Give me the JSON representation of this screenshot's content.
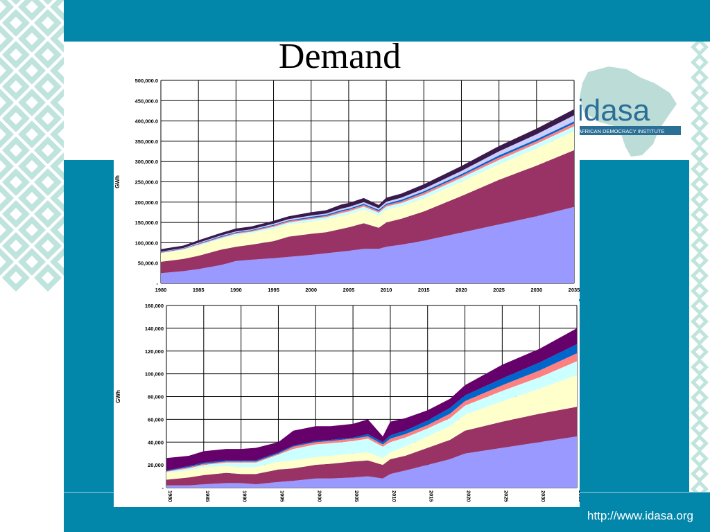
{
  "slide": {
    "title": "Demand",
    "url": "http://www.idasa.org",
    "logo_text": "idasa",
    "logo_tagline": "AFRICAN DEMOCRACY INSTITUTE"
  },
  "colors": {
    "teal_band": "#0286aa",
    "pattern_fill": "#bfe3dd",
    "logo_text": "#2b6f97",
    "africa_shape": "#bcdcd8"
  },
  "chart_data": [
    {
      "type": "area",
      "stacked": true,
      "ylabel": "GWh",
      "xlabel": "",
      "ylim": [
        0,
        500000
      ],
      "yticks": [
        "-",
        "50,000.0",
        "100,000.0",
        "150,000.0",
        "200,000.0",
        "250,000.0",
        "300,000.0",
        "350,000.0",
        "400,000.0",
        "450,000.0",
        "500,000.0"
      ],
      "xlim": [
        1980,
        2035
      ],
      "xticks": [
        "1980",
        "1985",
        "1990",
        "1995",
        "2000",
        "2005",
        "2010",
        "2015",
        "2020",
        "2025",
        "2030",
        "2035"
      ],
      "grid": true,
      "x": [
        1980,
        1983,
        1985,
        1988,
        1990,
        1992,
        1995,
        1997,
        2000,
        2002,
        2004,
        2005,
        2007,
        2009,
        2010,
        2012,
        2015,
        2020,
        2025,
        2030,
        2035
      ],
      "series": [
        {
          "color": "#9999ff",
          "values": [
            25000,
            30000,
            35000,
            45000,
            55000,
            58000,
            62000,
            65000,
            70000,
            74000,
            78000,
            80000,
            85000,
            85000,
            90000,
            95000,
            105000,
            125000,
            145000,
            165000,
            188000
          ]
        },
        {
          "color": "#993366",
          "values": [
            28000,
            30000,
            33000,
            38000,
            35000,
            37000,
            42000,
            50000,
            52000,
            52000,
            56000,
            58000,
            63000,
            52000,
            60000,
            64000,
            72000,
            90000,
            110000,
            125000,
            140000
          ]
        },
        {
          "color": "#ffffcc",
          "values": [
            20000,
            22000,
            24000,
            26000,
            28000,
            28000,
            30000,
            30000,
            30000,
            31000,
            32000,
            32000,
            33000,
            30000,
            31000,
            31000,
            32000,
            35000,
            38000,
            42000,
            46000
          ]
        },
        {
          "color": "#ccffff",
          "values": [
            2000,
            2000,
            3000,
            3000,
            4000,
            4000,
            5000,
            5000,
            6000,
            6000,
            7000,
            7000,
            8000,
            7000,
            8000,
            8000,
            9000,
            10000,
            11000,
            12000,
            13000
          ]
        },
        {
          "color": "#ff8080",
          "values": [
            1000,
            1000,
            2000,
            2000,
            2000,
            2000,
            3000,
            3000,
            3000,
            3000,
            4000,
            4000,
            4000,
            4000,
            4000,
            4000,
            5000,
            5000,
            6000,
            6000,
            7000
          ]
        },
        {
          "color": "#0066cc",
          "values": [
            1000,
            1000,
            1000,
            2000,
            2000,
            2000,
            2000,
            2000,
            3000,
            3000,
            3000,
            3000,
            3000,
            3000,
            3000,
            4000,
            4000,
            4000,
            5000,
            5000,
            5000
          ]
        },
        {
          "color": "#ccccff",
          "values": [
            1000,
            1000,
            2000,
            2000,
            2000,
            2000,
            3000,
            3000,
            3000,
            3000,
            4000,
            4000,
            4000,
            4000,
            5000,
            5000,
            6000,
            8000,
            10000,
            12000,
            15000
          ]
        },
        {
          "color": "#3a1a4a",
          "values": [
            6000,
            6000,
            6000,
            6000,
            7000,
            7000,
            7000,
            7000,
            8000,
            8000,
            10000,
            10000,
            10000,
            8000,
            10000,
            10000,
            11000,
            12000,
            13000,
            14000,
            15000
          ]
        }
      ]
    },
    {
      "type": "area",
      "stacked": true,
      "ylabel": "GWh",
      "xlabel": "",
      "ylim": [
        0,
        160000
      ],
      "yticks": [
        "-",
        "20,000",
        "40,000",
        "60,000",
        "80,000",
        "100,000",
        "120,000",
        "140,000",
        "160,000"
      ],
      "xlim": [
        1980,
        2035
      ],
      "xticks": [
        "1980",
        "1985",
        "1990",
        "1995",
        "2000",
        "2005",
        "2010",
        "2015",
        "2020",
        "2025",
        "2030",
        "2035"
      ],
      "grid": true,
      "x": [
        1980,
        1983,
        1985,
        1988,
        1990,
        1992,
        1995,
        1997,
        2000,
        2002,
        2005,
        2007,
        2009,
        2010,
        2012,
        2015,
        2018,
        2020,
        2025,
        2030,
        2035
      ],
      "series": [
        {
          "color": "#9999ff",
          "values": [
            2000,
            2000,
            3000,
            4000,
            4000,
            3000,
            5000,
            6000,
            8000,
            8000,
            9000,
            10000,
            8000,
            12000,
            15000,
            20000,
            25000,
            30000,
            35000,
            40000,
            45000
          ]
        },
        {
          "color": "#993366",
          "values": [
            5000,
            7000,
            8000,
            9000,
            8000,
            9000,
            11000,
            11000,
            12000,
            13000,
            14000,
            14000,
            12000,
            13000,
            13000,
            15000,
            17000,
            20000,
            23000,
            25000,
            26000
          ]
        },
        {
          "color": "#ffffcc",
          "values": [
            6000,
            6000,
            7000,
            6000,
            6000,
            6000,
            7000,
            7000,
            7000,
            7000,
            7000,
            7000,
            6000,
            6000,
            8000,
            10000,
            12000,
            14000,
            18000,
            22000,
            28000
          ]
        },
        {
          "color": "#ccffff",
          "values": [
            1000,
            2000,
            2000,
            3000,
            4000,
            4000,
            6000,
            10000,
            11000,
            11000,
            11000,
            12000,
            10000,
            9000,
            8000,
            7000,
            7000,
            8000,
            9000,
            10000,
            12000
          ]
        },
        {
          "color": "#ff8080",
          "values": [
            500,
            1000,
            1000,
            1000,
            1000,
            1000,
            1000,
            2000,
            2000,
            2000,
            2000,
            2000,
            2000,
            3000,
            3000,
            3000,
            4000,
            4000,
            5000,
            6000,
            7000
          ]
        },
        {
          "color": "#0066cc",
          "values": [
            500,
            1000,
            1000,
            1000,
            1000,
            1000,
            1000,
            1000,
            1000,
            1000,
            1000,
            2000,
            2000,
            3000,
            3000,
            4000,
            5000,
            5000,
            6000,
            7000,
            8000
          ]
        },
        {
          "color": "#66006a",
          "values": [
            11000,
            9000,
            10000,
            10000,
            10000,
            11000,
            9000,
            13000,
            13000,
            12000,
            12000,
            13000,
            5000,
            12000,
            11000,
            9000,
            8000,
            9000,
            12000,
            12000,
            14000
          ]
        }
      ]
    }
  ]
}
